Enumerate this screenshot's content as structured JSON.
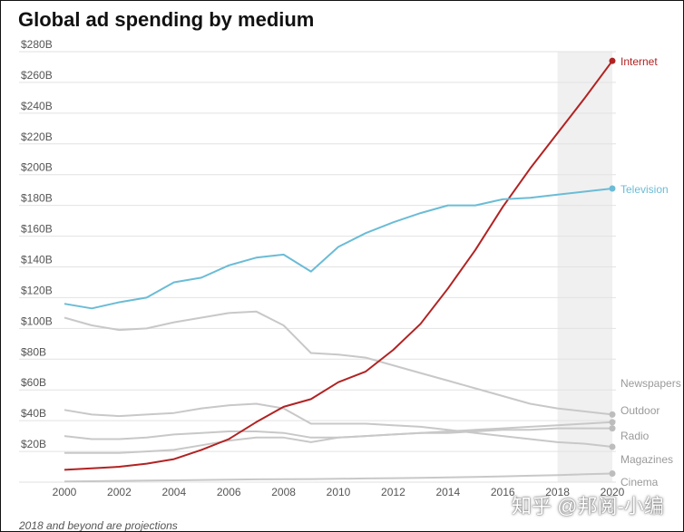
{
  "title": "Global ad spending by medium",
  "footnote": "2018 and beyond are projections",
  "watermark": "知乎 @邦阅-小编",
  "chart_data": {
    "type": "line",
    "title": "Global ad spending by medium",
    "xlabel": "",
    "ylabel": "",
    "x": [
      2000,
      2001,
      2002,
      2003,
      2004,
      2005,
      2006,
      2007,
      2008,
      2009,
      2010,
      2011,
      2012,
      2013,
      2014,
      2015,
      2016,
      2017,
      2018,
      2019,
      2020
    ],
    "xticks": [
      "2000",
      "2002",
      "2004",
      "2006",
      "2008",
      "2010",
      "2012",
      "2014",
      "2016",
      "2018",
      "2020"
    ],
    "ylim": [
      0,
      280
    ],
    "yticks": [
      "",
      "$20B",
      "$40B",
      "$60B",
      "$80B",
      "$100B",
      "$120B",
      "$140B",
      "$160B",
      "$180B",
      "$200B",
      "$220B",
      "$240B",
      "$260B",
      "$280B"
    ],
    "grid": true,
    "projection_shading": {
      "from": 2018,
      "to": 2020,
      "color": "#f0f0f0"
    },
    "series": [
      {
        "name": "Internet",
        "color": "#b22222",
        "marker": true,
        "values": [
          8,
          9,
          10,
          12,
          15,
          21,
          28,
          39,
          49,
          54,
          65,
          72,
          86,
          103,
          126,
          151,
          179,
          204,
          227,
          250,
          274
        ]
      },
      {
        "name": "Television",
        "color": "#6bbcd6",
        "marker": true,
        "values": [
          116,
          113,
          117,
          120,
          130,
          133,
          141,
          146,
          148,
          137,
          153,
          162,
          169,
          175,
          180,
          180,
          184,
          185,
          187,
          189,
          191
        ]
      },
      {
        "name": "Newspapers",
        "color": "#c8c8c8",
        "marker": true,
        "values": [
          107,
          102,
          99,
          100,
          104,
          107,
          110,
          111,
          102,
          84,
          83,
          81,
          76,
          71,
          66,
          61,
          56,
          51,
          48,
          46,
          44
        ]
      },
      {
        "name": "Outdoor",
        "color": "#c8c8c8",
        "marker": true,
        "values": [
          19,
          19,
          19,
          20,
          21,
          24,
          27,
          29,
          29,
          26,
          29,
          30,
          31,
          32,
          33,
          34,
          35,
          36,
          37,
          38,
          39
        ]
      },
      {
        "name": "Radio",
        "color": "#c8c8c8",
        "marker": true,
        "values": [
          30,
          28,
          28,
          29,
          31,
          32,
          33,
          33,
          32,
          29,
          29,
          30,
          31,
          32,
          32,
          33,
          34,
          34,
          35,
          35,
          35
        ]
      },
      {
        "name": "Magazines",
        "color": "#c8c8c8",
        "marker": true,
        "values": [
          47,
          44,
          43,
          44,
          45,
          48,
          50,
          51,
          48,
          38,
          38,
          38,
          37,
          36,
          34,
          32,
          30,
          28,
          26,
          25,
          23
        ]
      },
      {
        "name": "Cinema",
        "color": "#c8c8c8",
        "marker": true,
        "values": [
          0.5,
          0.6,
          0.8,
          1,
          1.2,
          1.4,
          1.6,
          1.8,
          1.9,
          2,
          2.2,
          2.4,
          2.6,
          2.8,
          3.1,
          3.4,
          3.8,
          4.2,
          4.6,
          5.1,
          5.6
        ]
      }
    ]
  }
}
